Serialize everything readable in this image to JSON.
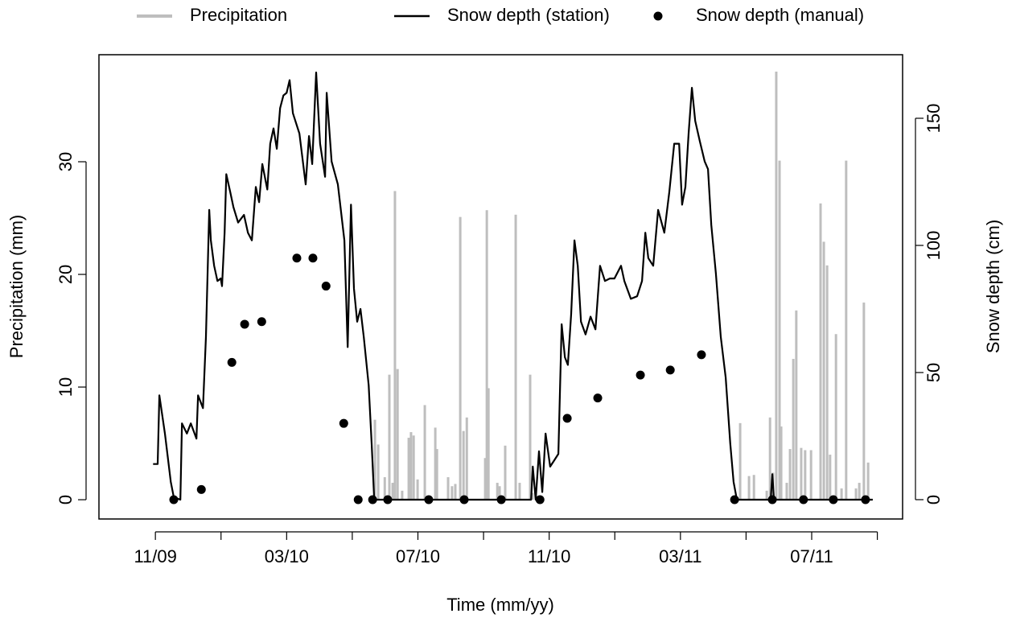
{
  "chart_data": {
    "type": "combo",
    "x_label": "Time (mm/yy)",
    "y_label": "Precipitation (mm)",
    "y2_label": "Snow depth (cm)",
    "xlim": [
      -1.72,
      22.77
    ],
    "ylim": [
      -1.71,
      39.5
    ],
    "y2lim": [
      -7.6,
      175
    ],
    "xticks": [
      {
        "value": 0,
        "label": "11/09"
      },
      {
        "value": 4,
        "label": "03/10"
      },
      {
        "value": 8,
        "label": "07/10"
      },
      {
        "value": 12,
        "label": "11/10"
      },
      {
        "value": 16,
        "label": "03/11"
      },
      {
        "value": 20,
        "label": "07/11"
      }
    ],
    "xminor_ticks": [
      2,
      6,
      10,
      14,
      18,
      22
    ],
    "yticks": [
      0,
      10,
      20,
      30
    ],
    "y2ticks": [
      0,
      50,
      100,
      150
    ],
    "legend": "top-outside",
    "series": [
      {
        "name": "Precipitation",
        "type": "bar",
        "color": "#bebebe",
        "x": [
          6.69,
          6.79,
          6.99,
          7.13,
          7.23,
          7.3,
          7.38,
          7.52,
          7.72,
          7.79,
          7.87,
          7.99,
          8.21,
          8.53,
          8.58,
          8.92,
          9.04,
          9.14,
          9.29,
          9.39,
          9.49,
          10.05,
          10.1,
          10.15,
          10.42,
          10.49,
          10.66,
          10.98,
          11.1,
          11.42,
          11.49,
          17.82,
          18.09,
          18.24,
          18.63,
          18.73,
          18.82,
          18.92,
          19.02,
          19.07,
          19.24,
          19.34,
          19.44,
          19.53,
          19.68,
          19.8,
          19.98,
          20.27,
          20.37,
          20.47,
          20.56,
          20.74,
          20.91,
          21.05,
          21.35,
          21.45,
          21.59,
          21.72
        ],
        "values": [
          7.1,
          4.9,
          2,
          11.1,
          1.5,
          27.4,
          11.6,
          0.8,
          5.5,
          6,
          5.7,
          1.8,
          8.4,
          6.4,
          4.5,
          2,
          1.2,
          1.4,
          25.1,
          6.1,
          7.3,
          3.7,
          25.7,
          9.9,
          1.5,
          1.2,
          4.8,
          25.3,
          1.5,
          11.1,
          0.6,
          6.8,
          2.1,
          2.2,
          0.8,
          7.3,
          2.4,
          38,
          30.1,
          6.5,
          1.5,
          4.5,
          12.5,
          16.8,
          4.6,
          4.4,
          4.4,
          26.3,
          22.9,
          20.8,
          4,
          14.7,
          1,
          30.1,
          1,
          1.5,
          17.5,
          3.3
        ]
      },
      {
        "name": "Snow depth (station)",
        "type": "line",
        "axis": "y2",
        "color": "#000000",
        "x": [
          -0.07,
          0.07,
          0.12,
          0.29,
          0.47,
          0.56,
          0.76,
          0.81,
          0.96,
          1.08,
          1.25,
          1.3,
          1.45,
          1.54,
          1.64,
          1.69,
          1.79,
          1.89,
          1.99,
          2.03,
          2.11,
          2.16,
          2.28,
          2.38,
          2.52,
          2.7,
          2.82,
          2.94,
          3.06,
          3.16,
          3.26,
          3.41,
          3.5,
          3.6,
          3.7,
          3.8,
          3.9,
          4.0,
          4.09,
          4.19,
          4.39,
          4.58,
          4.68,
          4.78,
          4.9,
          5.02,
          5.17,
          5.22,
          5.37,
          5.56,
          5.76,
          5.86,
          5.96,
          6.05,
          6.15,
          6.25,
          6.35,
          6.5,
          6.59,
          6.67,
          11.45,
          11.5,
          11.59,
          11.69,
          11.79,
          11.89,
          12.03,
          12.13,
          12.28,
          12.38,
          12.48,
          12.57,
          12.67,
          12.77,
          12.87,
          12.97,
          13.11,
          13.26,
          13.41,
          13.55,
          13.7,
          13.85,
          13.99,
          14.19,
          14.29,
          14.49,
          14.68,
          14.83,
          14.93,
          15.02,
          15.17,
          15.32,
          15.51,
          15.66,
          15.81,
          15.96,
          16.05,
          16.15,
          16.25,
          16.35,
          16.45,
          16.59,
          16.74,
          16.84,
          16.94,
          17.08,
          17.23,
          17.38,
          17.52,
          17.62,
          17.72,
          18.75,
          18.8,
          18.85,
          21.86
        ],
        "values": [
          14,
          14,
          41,
          26,
          7,
          1,
          0,
          30,
          26,
          30,
          24,
          41,
          36,
          64,
          114,
          102,
          92,
          86,
          87,
          84,
          105,
          128,
          121,
          115,
          109,
          112,
          105,
          102,
          123,
          117,
          132,
          122,
          140,
          146,
          138,
          154,
          159,
          160,
          165,
          152,
          144,
          124,
          143,
          132,
          168,
          140,
          127,
          160,
          133,
          124,
          102,
          60,
          116,
          83,
          70,
          75,
          64,
          45,
          22,
          0,
          0,
          13,
          0,
          19,
          3,
          26,
          13,
          15,
          18,
          69,
          56,
          53,
          73,
          102,
          92,
          70,
          65,
          72,
          67,
          92,
          86,
          87,
          87,
          92,
          86,
          79,
          80,
          86,
          105,
          95,
          92,
          114,
          105,
          121,
          140,
          140,
          116,
          123,
          144,
          162,
          149,
          141,
          133,
          130,
          108,
          89,
          64,
          48,
          22,
          7,
          0,
          0,
          10,
          0,
          0
        ]
      },
      {
        "name": "Snow depth (manual)",
        "type": "scatter",
        "axis": "y2",
        "color": "#000000",
        "x": [
          0.56,
          1.4,
          2.33,
          2.72,
          3.24,
          4.31,
          4.8,
          5.2,
          5.74,
          6.18,
          6.62,
          7.08,
          8.33,
          9.41,
          10.54,
          11.72,
          12.55,
          13.48,
          14.78,
          15.69,
          16.64,
          17.65,
          18.8,
          19.75,
          20.66,
          21.64
        ],
        "values": [
          0,
          4,
          54,
          69,
          70,
          95,
          95,
          84,
          30,
          0,
          0,
          0,
          0,
          0,
          0,
          0,
          32,
          40,
          49,
          51,
          57,
          0,
          0,
          0,
          0,
          0
        ]
      }
    ]
  }
}
